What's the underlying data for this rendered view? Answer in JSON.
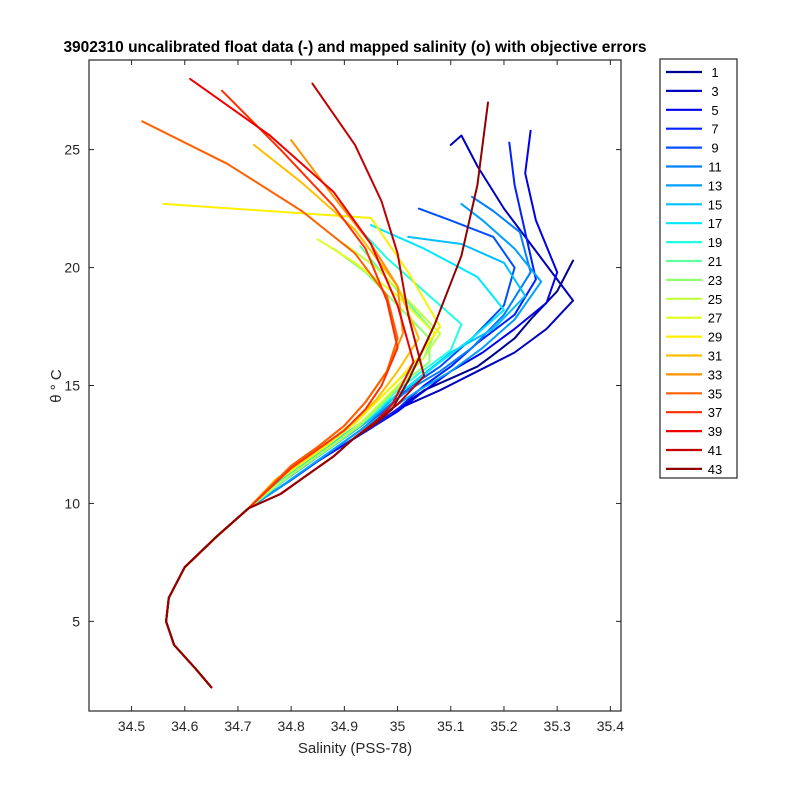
{
  "chart_data": {
    "type": "line",
    "title": "3902310 uncalibrated float data (-) and mapped salinity (o) with objective errors",
    "xlabel": "Salinity (PSS-78)",
    "ylabel": "θ ° C",
    "xlim": [
      34.42,
      35.42
    ],
    "ylim": [
      1.2,
      28.8
    ],
    "xticks": [
      34.5,
      34.6,
      34.7,
      34.8,
      34.9,
      35,
      35.1,
      35.2,
      35.3,
      35.4
    ],
    "xtick_labels": [
      "34.5",
      "34.6",
      "34.7",
      "34.8",
      "34.9",
      "35",
      "35.1",
      "35.2",
      "35.3",
      "35.4"
    ],
    "yticks": [
      5,
      10,
      15,
      20,
      25
    ],
    "ytick_labels": [
      "5",
      "10",
      "15",
      "20",
      "25"
    ],
    "grid": false,
    "legend_position": "outside-right",
    "legend": [
      "1",
      "3",
      "5",
      "7",
      "9",
      "11",
      "13",
      "15",
      "17",
      "19",
      "21",
      "23",
      "25",
      "27",
      "29",
      "31",
      "33",
      "35",
      "37",
      "39",
      "41",
      "43"
    ],
    "legend_colors": [
      "#00008F",
      "#0000BF",
      "#0000EF",
      "#0020FF",
      "#0050FF",
      "#0080FF",
      "#00A0FF",
      "#00C0FF",
      "#00E8FF",
      "#20FFDF",
      "#60FFA0",
      "#90FF70",
      "#C0FF40",
      "#E0FF20",
      "#FFEF00",
      "#FFBF00",
      "#FF9000",
      "#FF6000",
      "#FF3000",
      "#EF0000",
      "#C00000",
      "#900000"
    ],
    "series": [
      {
        "name": "1",
        "color": "#00008F",
        "x": [
          35.33,
          35.3,
          35.25,
          35.22,
          35.18,
          35.15,
          35.1,
          35.05,
          35.0,
          34.95,
          34.9,
          34.85,
          34.8,
          34.72,
          34.66,
          34.6,
          34.57,
          34.565,
          34.58,
          34.62,
          34.65
        ],
        "y": [
          20.3,
          19.0,
          17.8,
          17.0,
          16.3,
          15.8,
          15.3,
          14.8,
          14.0,
          13.2,
          12.5,
          11.8,
          11.0,
          9.8,
          8.6,
          7.3,
          6.0,
          5.0,
          4.0,
          3.0,
          2.2
        ]
      },
      {
        "name": "3",
        "color": "#0000BF",
        "x": [
          35.1,
          35.12,
          35.15,
          35.2,
          35.25,
          35.33,
          35.28,
          35.22,
          35.15,
          35.08,
          35.0,
          34.95,
          34.9,
          34.85,
          34.8,
          34.72,
          34.66,
          34.6,
          34.57,
          34.565,
          34.58,
          34.62,
          34.65
        ],
        "y": [
          25.2,
          25.6,
          24.3,
          22.5,
          21.0,
          18.6,
          17.4,
          16.4,
          15.6,
          14.8,
          14.0,
          13.2,
          12.5,
          11.8,
          11.0,
          9.8,
          8.6,
          7.3,
          6.0,
          5.0,
          4.0,
          3.0,
          2.2
        ]
      },
      {
        "name": "5",
        "color": "#0000EF",
        "x": [
          35.25,
          35.24,
          35.26,
          35.3,
          35.28,
          35.22,
          35.16,
          35.1,
          35.04,
          35.0,
          34.95,
          34.9,
          34.85,
          34.8,
          34.72,
          34.66,
          34.6,
          34.57,
          34.565,
          34.58,
          34.62,
          34.65
        ],
        "y": [
          25.8,
          24.0,
          22.0,
          19.8,
          18.5,
          17.4,
          16.4,
          15.6,
          14.6,
          13.9,
          13.2,
          12.5,
          11.8,
          11.0,
          9.8,
          8.6,
          7.3,
          6.0,
          5.0,
          4.0,
          3.0,
          2.2
        ]
      },
      {
        "name": "7",
        "color": "#0020FF",
        "x": [
          35.21,
          35.22,
          35.24,
          35.26,
          35.22,
          35.15,
          35.1,
          35.05,
          35.0,
          34.95,
          34.9,
          34.85,
          34.8,
          34.72,
          34.66,
          34.6,
          34.57,
          34.565,
          34.58,
          34.62,
          34.65
        ],
        "y": [
          25.3,
          23.5,
          21.5,
          19.5,
          18.0,
          16.8,
          15.8,
          15.0,
          14.0,
          13.2,
          12.5,
          11.8,
          11.0,
          9.8,
          8.6,
          7.3,
          6.0,
          5.0,
          4.0,
          3.0,
          2.2
        ]
      },
      {
        "name": "9",
        "color": "#0050FF",
        "x": [
          35.04,
          35.1,
          35.18,
          35.22,
          35.2,
          35.14,
          35.08,
          35.02,
          34.98,
          34.93,
          34.88,
          34.83,
          34.78,
          34.72,
          34.66,
          34.6,
          34.57,
          34.565,
          34.58,
          34.62,
          34.65
        ],
        "y": [
          22.5,
          22.0,
          21.3,
          20.0,
          18.4,
          17.0,
          15.8,
          14.9,
          14.0,
          13.1,
          12.3,
          11.5,
          10.7,
          9.8,
          8.6,
          7.3,
          6.0,
          5.0,
          4.0,
          3.0,
          2.2
        ]
      },
      {
        "name": "11",
        "color": "#0080FF",
        "x": [
          35.14,
          35.18,
          35.23,
          35.25,
          35.2,
          35.14,
          35.08,
          35.02,
          34.97,
          34.92,
          34.87,
          34.82,
          34.77,
          34.72,
          34.66,
          34.6,
          34.57,
          34.565,
          34.58,
          34.62,
          34.65
        ],
        "y": [
          23.0,
          22.4,
          21.5,
          19.8,
          18.0,
          16.6,
          15.6,
          14.8,
          13.9,
          13.1,
          12.3,
          11.5,
          10.7,
          9.8,
          8.6,
          7.3,
          6.0,
          5.0,
          4.0,
          3.0,
          2.2
        ]
      },
      {
        "name": "13",
        "color": "#00A0FF",
        "x": [
          35.12,
          35.16,
          35.22,
          35.27,
          35.22,
          35.16,
          35.1,
          35.04,
          34.98,
          34.93,
          34.88,
          34.83,
          34.78,
          34.72,
          34.66,
          34.6,
          34.57,
          34.565,
          34.58,
          34.62,
          34.65
        ],
        "y": [
          22.7,
          22.0,
          20.8,
          19.4,
          17.8,
          16.6,
          15.6,
          14.8,
          13.9,
          13.1,
          12.3,
          11.5,
          10.7,
          9.8,
          8.6,
          7.3,
          6.0,
          5.0,
          4.0,
          3.0,
          2.2
        ]
      },
      {
        "name": "15",
        "color": "#00C0FF",
        "x": [
          35.02,
          35.12,
          35.2,
          35.24,
          35.18,
          35.1,
          35.05,
          35.0,
          34.95,
          34.9,
          34.85,
          34.8,
          34.72,
          34.66,
          34.6,
          34.57,
          34.565,
          34.58,
          34.62,
          34.65
        ],
        "y": [
          21.3,
          21.0,
          20.2,
          18.8,
          17.4,
          16.4,
          15.5,
          14.6,
          13.6,
          12.8,
          12.0,
          11.2,
          9.8,
          8.6,
          7.3,
          6.0,
          5.0,
          4.0,
          3.0,
          2.2
        ]
      },
      {
        "name": "17",
        "color": "#00E8FF",
        "x": [
          34.95,
          35.05,
          35.15,
          35.2,
          35.14,
          35.08,
          35.03,
          34.98,
          34.93,
          34.88,
          34.83,
          34.78,
          34.72,
          34.66,
          34.6,
          34.57,
          34.565,
          34.58,
          34.62,
          34.65
        ],
        "y": [
          21.8,
          20.8,
          19.6,
          18.2,
          17.0,
          16.0,
          15.1,
          14.3,
          13.4,
          12.6,
          11.8,
          11.0,
          9.8,
          8.6,
          7.3,
          6.0,
          5.0,
          4.0,
          3.0,
          2.2
        ]
      },
      {
        "name": "19",
        "color": "#20FFDF",
        "x": [
          34.93,
          34.98,
          35.05,
          35.12,
          35.1,
          35.04,
          34.99,
          34.95,
          34.9,
          34.85,
          34.8,
          34.72,
          34.66,
          34.6,
          34.57,
          34.565,
          34.58,
          34.62,
          34.65
        ],
        "y": [
          21.6,
          20.4,
          19.0,
          17.6,
          16.5,
          15.5,
          14.6,
          13.7,
          12.8,
          12.0,
          11.2,
          9.8,
          8.6,
          7.3,
          6.0,
          5.0,
          4.0,
          3.0,
          2.2
        ]
      },
      {
        "name": "21",
        "color": "#60FFA0",
        "x": [
          34.93,
          34.97,
          35.02,
          35.07,
          35.05,
          35.0,
          34.96,
          34.92,
          34.87,
          34.82,
          34.77,
          34.72,
          34.66,
          34.6,
          34.57,
          34.565,
          34.58,
          34.62,
          34.65
        ],
        "y": [
          20.9,
          19.8,
          18.5,
          17.2,
          16.2,
          15.2,
          14.3,
          13.4,
          12.5,
          11.7,
          10.9,
          9.8,
          8.6,
          7.3,
          6.0,
          5.0,
          4.0,
          3.0,
          2.2
        ]
      },
      {
        "name": "23",
        "color": "#90FF70",
        "x": [
          34.88,
          34.94,
          35.0,
          35.06,
          35.06,
          35.01,
          34.97,
          34.93,
          34.88,
          34.83,
          34.78,
          34.72,
          34.66,
          34.6,
          34.57,
          34.565,
          34.58,
          34.62,
          34.65
        ],
        "y": [
          20.8,
          19.8,
          18.4,
          17.0,
          16.0,
          15.1,
          14.2,
          13.3,
          12.5,
          11.7,
          10.9,
          9.8,
          8.6,
          7.3,
          6.0,
          5.0,
          4.0,
          3.0,
          2.2
        ]
      },
      {
        "name": "25",
        "color": "#C0FF40",
        "x": [
          34.9,
          34.96,
          35.02,
          35.08,
          35.05,
          35.01,
          34.97,
          34.93,
          34.88,
          34.83,
          34.78,
          34.72,
          34.66,
          34.6,
          34.57,
          34.565,
          34.58,
          34.62,
          34.65
        ],
        "y": [
          21.0,
          20.0,
          18.6,
          17.2,
          16.2,
          15.2,
          14.3,
          13.4,
          12.5,
          11.7,
          10.9,
          9.8,
          8.6,
          7.3,
          6.0,
          5.0,
          4.0,
          3.0,
          2.2
        ]
      },
      {
        "name": "27",
        "color": "#E0FF20",
        "x": [
          34.85,
          34.92,
          35.0,
          35.07,
          35.04,
          35.0,
          34.96,
          34.92,
          34.87,
          34.82,
          34.77,
          34.72,
          34.66,
          34.6,
          34.57,
          34.565,
          34.58,
          34.62,
          34.65
        ],
        "y": [
          21.2,
          20.2,
          18.8,
          17.2,
          16.2,
          15.2,
          14.3,
          13.4,
          12.5,
          11.7,
          10.9,
          9.8,
          8.6,
          7.3,
          6.0,
          5.0,
          4.0,
          3.0,
          2.2
        ]
      },
      {
        "name": "29",
        "color": "#FFEF00",
        "x": [
          34.56,
          34.95,
          35.02,
          35.08,
          35.04,
          35.0,
          34.96,
          34.92,
          34.87,
          34.82,
          34.77,
          34.72,
          34.66,
          34.6,
          34.57,
          34.565,
          34.58,
          34.62,
          34.65
        ],
        "y": [
          22.7,
          22.1,
          19.8,
          17.5,
          16.2,
          15.2,
          14.3,
          13.4,
          12.5,
          11.7,
          10.9,
          9.8,
          8.6,
          7.3,
          6.0,
          5.0,
          4.0,
          3.0,
          2.2
        ]
      },
      {
        "name": "31",
        "color": "#FFBF00",
        "x": [
          34.73,
          34.82,
          34.92,
          35.0,
          35.04,
          35.0,
          34.96,
          34.92,
          34.87,
          34.82,
          34.77,
          34.72,
          34.66,
          34.6,
          34.57,
          34.565,
          34.58,
          34.62,
          34.65
        ],
        "y": [
          25.2,
          23.6,
          21.6,
          19.2,
          17.0,
          15.6,
          14.4,
          13.5,
          12.6,
          11.8,
          11.0,
          9.8,
          8.6,
          7.3,
          6.0,
          5.0,
          4.0,
          3.0,
          2.2
        ]
      },
      {
        "name": "33",
        "color": "#FF9000",
        "x": [
          34.8,
          34.88,
          34.95,
          35.0,
          35.01,
          34.98,
          34.94,
          34.9,
          34.85,
          34.8,
          34.72,
          34.66,
          34.6,
          34.57,
          34.565,
          34.58,
          34.62,
          34.65
        ],
        "y": [
          25.4,
          23.0,
          21.0,
          19.2,
          17.2,
          15.6,
          14.3,
          13.3,
          12.4,
          11.6,
          9.8,
          8.6,
          7.3,
          6.0,
          5.0,
          4.0,
          3.0,
          2.2
        ]
      },
      {
        "name": "35",
        "color": "#FF6000",
        "x": [
          34.52,
          34.68,
          34.82,
          34.92,
          34.98,
          35.0,
          34.98,
          34.94,
          34.9,
          34.85,
          34.8,
          34.72,
          34.66,
          34.6,
          34.57,
          34.565,
          34.58,
          34.62,
          34.65
        ],
        "y": [
          26.2,
          24.4,
          22.4,
          20.6,
          18.8,
          17.0,
          15.6,
          14.3,
          13.3,
          12.4,
          11.6,
          9.8,
          8.6,
          7.3,
          6.0,
          5.0,
          4.0,
          3.0,
          2.2
        ]
      },
      {
        "name": "37",
        "color": "#FF3000",
        "x": [
          34.67,
          34.78,
          34.88,
          34.94,
          34.98,
          35.0,
          34.97,
          34.94,
          34.9,
          34.85,
          34.8,
          34.72,
          34.66,
          34.6,
          34.57,
          34.565,
          34.58,
          34.62,
          34.65
        ],
        "y": [
          27.5,
          25.0,
          22.6,
          20.8,
          18.6,
          16.6,
          15.0,
          14.0,
          13.1,
          12.3,
          11.5,
          9.8,
          8.6,
          7.3,
          6.0,
          5.0,
          4.0,
          3.0,
          2.2
        ]
      },
      {
        "name": "39",
        "color": "#EF0000",
        "x": [
          34.61,
          34.76,
          34.88,
          34.95,
          35.0,
          35.03,
          34.99,
          34.96,
          34.92,
          34.88,
          34.83,
          34.78,
          34.72,
          34.66,
          34.6,
          34.57,
          34.565,
          34.58,
          34.62,
          34.65
        ],
        "y": [
          28.0,
          25.6,
          23.2,
          21.0,
          18.4,
          16.0,
          14.2,
          13.5,
          12.8,
          12.0,
          11.2,
          10.4,
          9.8,
          8.6,
          7.3,
          6.0,
          5.0,
          4.0,
          3.0,
          2.2
        ]
      },
      {
        "name": "41",
        "color": "#C00000",
        "x": [
          34.84,
          34.92,
          34.97,
          35.0,
          35.02,
          35.05,
          35.0,
          34.96,
          34.92,
          34.88,
          34.83,
          34.78,
          34.72,
          34.66,
          34.6,
          34.57,
          34.565,
          34.58,
          34.62,
          34.65
        ],
        "y": [
          27.8,
          25.2,
          22.8,
          20.6,
          18.0,
          15.4,
          14.2,
          13.5,
          12.8,
          12.0,
          11.2,
          10.4,
          9.8,
          8.6,
          7.3,
          6.0,
          5.0,
          4.0,
          3.0,
          2.2
        ]
      },
      {
        "name": "43",
        "color": "#900000",
        "x": [
          35.17,
          35.15,
          35.12,
          35.07,
          35.02,
          34.99,
          34.96,
          34.92,
          34.88,
          34.83,
          34.78,
          34.72,
          34.66,
          34.6,
          34.57,
          34.565,
          34.58,
          34.62,
          34.65
        ],
        "y": [
          27.0,
          23.5,
          20.5,
          17.6,
          15.2,
          14.0,
          13.4,
          12.8,
          12.0,
          11.2,
          10.4,
          9.8,
          8.6,
          7.3,
          6.0,
          5.0,
          4.0,
          3.0,
          2.2
        ]
      }
    ]
  }
}
